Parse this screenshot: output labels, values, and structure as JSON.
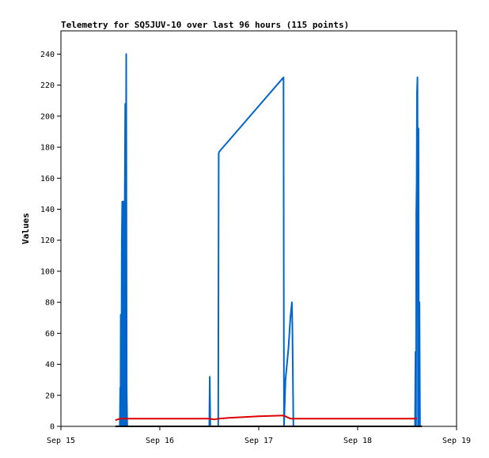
{
  "chart_data": {
    "type": "line",
    "title": "Telemetry for SQ5JUV-10 over last 96 hours (115 points)",
    "xlabel": "",
    "ylabel": "Values",
    "xlim": [
      0,
      4
    ],
    "ylim": [
      0,
      255
    ],
    "x_ticks": [
      {
        "v": 0,
        "label": "Sep 15"
      },
      {
        "v": 1,
        "label": "Sep 16"
      },
      {
        "v": 2,
        "label": "Sep 17"
      },
      {
        "v": 3,
        "label": "Sep 18"
      },
      {
        "v": 4,
        "label": "Sep 19"
      }
    ],
    "y_ticks": [
      0,
      20,
      40,
      60,
      80,
      100,
      120,
      140,
      160,
      180,
      200,
      220,
      240
    ],
    "grid": false,
    "series": [
      {
        "color": "#0066cc",
        "points": [
          [
            0.58,
            0
          ],
          [
            0.595,
            0
          ],
          [
            0.6,
            25
          ],
          [
            0.602,
            0
          ],
          [
            0.605,
            72
          ],
          [
            0.61,
            0
          ],
          [
            0.615,
            120
          ],
          [
            0.62,
            145
          ],
          [
            0.625,
            0
          ],
          [
            0.63,
            145
          ],
          [
            0.635,
            120
          ],
          [
            0.64,
            0
          ],
          [
            0.645,
            140
          ],
          [
            0.65,
            208
          ],
          [
            0.655,
            0
          ],
          [
            0.66,
            240
          ],
          [
            0.665,
            25
          ],
          [
            0.67,
            0
          ],
          [
            1.5,
            0
          ],
          [
            1.505,
            32
          ],
          [
            1.51,
            0
          ],
          [
            1.59,
            0
          ],
          [
            1.595,
            176
          ],
          [
            1.6,
            177
          ],
          [
            2.25,
            225
          ],
          [
            2.255,
            0
          ],
          [
            2.27,
            30
          ],
          [
            2.3,
            50
          ],
          [
            2.32,
            70
          ],
          [
            2.335,
            80
          ],
          [
            2.34,
            65
          ],
          [
            2.35,
            0
          ],
          [
            3.58,
            0
          ],
          [
            3.585,
            48
          ],
          [
            3.59,
            0
          ],
          [
            3.593,
            137
          ],
          [
            3.597,
            158
          ],
          [
            3.6,
            215
          ],
          [
            3.605,
            225
          ],
          [
            3.61,
            0
          ],
          [
            3.615,
            192
          ],
          [
            3.62,
            0
          ],
          [
            3.625,
            80
          ],
          [
            3.63,
            0
          ],
          [
            3.64,
            0
          ]
        ]
      },
      {
        "color": "#dd0000",
        "points": [
          [
            0.55,
            4
          ],
          [
            0.6,
            5
          ],
          [
            1.5,
            5
          ],
          [
            1.55,
            4.5
          ],
          [
            1.6,
            5
          ],
          [
            1.7,
            5.5
          ],
          [
            2.0,
            6.5
          ],
          [
            2.25,
            7
          ],
          [
            2.32,
            5
          ],
          [
            2.45,
            5
          ],
          [
            3.0,
            5
          ],
          [
            3.6,
            5
          ]
        ]
      },
      {
        "color": "#000000",
        "points": [
          [
            0.55,
            0
          ],
          [
            3.65,
            0
          ]
        ]
      }
    ]
  }
}
